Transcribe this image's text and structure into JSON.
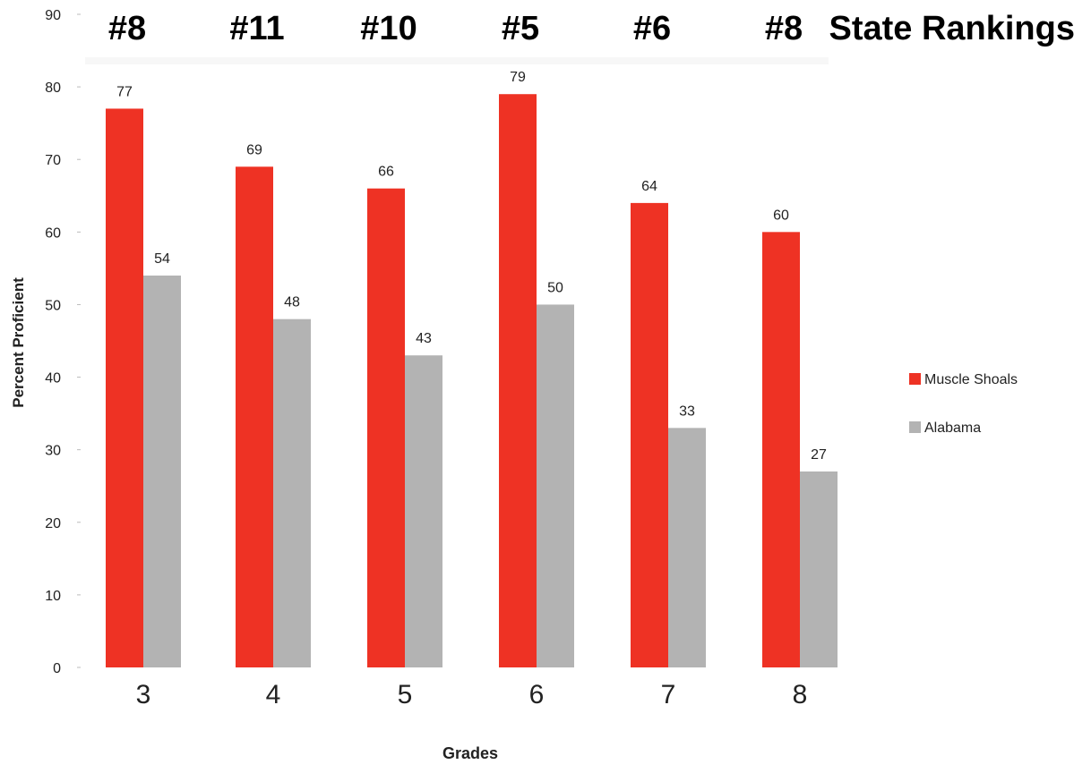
{
  "chart_data": {
    "type": "bar",
    "categories": [
      "3",
      "4",
      "5",
      "6",
      "7",
      "8"
    ],
    "series": [
      {
        "name": "Muscle Shoals",
        "values": [
          77,
          69,
          66,
          79,
          64,
          60
        ],
        "color": "#ee3224"
      },
      {
        "name": "Alabama",
        "values": [
          54,
          48,
          43,
          50,
          33,
          27
        ],
        "color": "#b3b3b3"
      }
    ],
    "rankings": [
      "#8",
      "#11",
      "#10",
      "#5",
      "#6",
      "#8"
    ],
    "rankings_title": "State Rankings",
    "xlabel": "Grades",
    "ylabel": "Percent Proficient",
    "ylim": [
      0,
      90
    ],
    "yticks": [
      0,
      10,
      20,
      30,
      40,
      50,
      60,
      70,
      80,
      90
    ],
    "grid": false,
    "legend_position": "right"
  }
}
